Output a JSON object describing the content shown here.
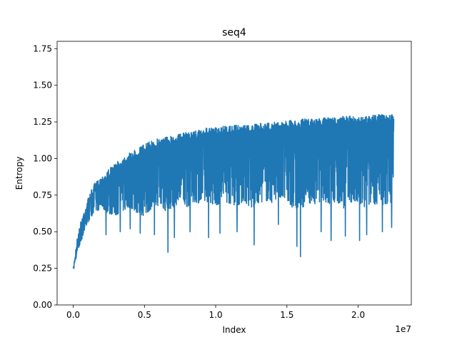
{
  "chart_data": {
    "type": "line",
    "title": "seq4",
    "xlabel": "Index",
    "ylabel": "Entropy",
    "x_offset_label": "1e7",
    "xlim": [
      -1130000,
      23730000
    ],
    "ylim": [
      0.0,
      1.8
    ],
    "x_ticks": [
      0.0,
      0.5,
      1.0,
      1.5,
      2.0
    ],
    "x_tick_labels": [
      "0.0",
      "0.5",
      "1.0",
      "1.5",
      "2.0"
    ],
    "y_ticks": [
      0.0,
      0.25,
      0.5,
      0.75,
      1.0,
      1.25,
      1.5,
      1.75
    ],
    "y_tick_labels": [
      "0.00",
      "0.25",
      "0.50",
      "0.75",
      "1.00",
      "1.25",
      "1.50",
      "1.75"
    ],
    "grid": false,
    "series": [
      {
        "name": "",
        "color": "#1f77b4",
        "x": [
          0,
          200000,
          400000,
          600000,
          800000,
          1000000,
          1200000,
          1500000,
          2000000,
          2500000,
          3000000,
          3500000,
          4000000,
          4500000,
          5000000,
          5500000,
          6000000,
          6500000,
          7000000,
          7500000,
          8000000,
          8500000,
          9000000,
          9500000,
          10000000,
          10500000,
          11000000,
          11500000,
          12000000,
          12500000,
          13000000,
          13500000,
          14000000,
          14500000,
          15000000,
          15500000,
          16000000,
          16500000,
          17000000,
          17500000,
          18000000,
          18500000,
          19000000,
          19500000,
          20000000,
          20500000,
          21000000,
          21500000,
          22000000,
          22500000
        ],
        "upper": [
          0.25,
          0.42,
          0.52,
          0.6,
          0.66,
          0.72,
          0.77,
          0.83,
          0.88,
          0.93,
          0.97,
          1.01,
          1.04,
          1.07,
          1.1,
          1.12,
          1.14,
          1.15,
          1.16,
          1.17,
          1.18,
          1.19,
          1.2,
          1.21,
          1.21,
          1.22,
          1.22,
          1.23,
          1.23,
          1.23,
          1.24,
          1.24,
          1.25,
          1.25,
          1.26,
          1.26,
          1.27,
          1.27,
          1.27,
          1.28,
          1.28,
          1.28,
          1.29,
          1.29,
          1.29,
          1.29,
          1.3,
          1.3,
          1.3,
          1.3
        ],
        "lower": [
          0.25,
          0.3,
          0.36,
          0.42,
          0.48,
          0.52,
          0.56,
          0.6,
          0.62,
          0.57,
          0.55,
          0.58,
          0.6,
          0.55,
          0.52,
          0.58,
          0.6,
          0.55,
          0.58,
          0.62,
          0.58,
          0.62,
          0.6,
          0.62,
          0.58,
          0.62,
          0.6,
          0.58,
          0.62,
          0.55,
          0.6,
          0.62,
          0.6,
          0.65,
          0.6,
          0.55,
          0.55,
          0.6,
          0.58,
          0.62,
          0.58,
          0.6,
          0.55,
          0.6,
          0.58,
          0.55,
          0.6,
          0.55,
          0.58,
          0.6
        ],
        "dips": [
          {
            "x": 2300000,
            "y": 0.48
          },
          {
            "x": 3300000,
            "y": 0.5
          },
          {
            "x": 4000000,
            "y": 0.52
          },
          {
            "x": 4700000,
            "y": 0.49
          },
          {
            "x": 5700000,
            "y": 0.48
          },
          {
            "x": 6650000,
            "y": 0.36
          },
          {
            "x": 7100000,
            "y": 0.46
          },
          {
            "x": 8200000,
            "y": 0.5
          },
          {
            "x": 9500000,
            "y": 0.46
          },
          {
            "x": 10300000,
            "y": 0.49
          },
          {
            "x": 11500000,
            "y": 0.5
          },
          {
            "x": 12700000,
            "y": 0.41
          },
          {
            "x": 14400000,
            "y": 0.55
          },
          {
            "x": 15700000,
            "y": 0.4
          },
          {
            "x": 15950000,
            "y": 0.33
          },
          {
            "x": 17400000,
            "y": 0.5
          },
          {
            "x": 18100000,
            "y": 0.44
          },
          {
            "x": 19100000,
            "y": 0.47
          },
          {
            "x": 20100000,
            "y": 0.44
          },
          {
            "x": 20600000,
            "y": 0.48
          },
          {
            "x": 21700000,
            "y": 0.5
          },
          {
            "x": 22350000,
            "y": 0.53
          }
        ]
      }
    ]
  }
}
